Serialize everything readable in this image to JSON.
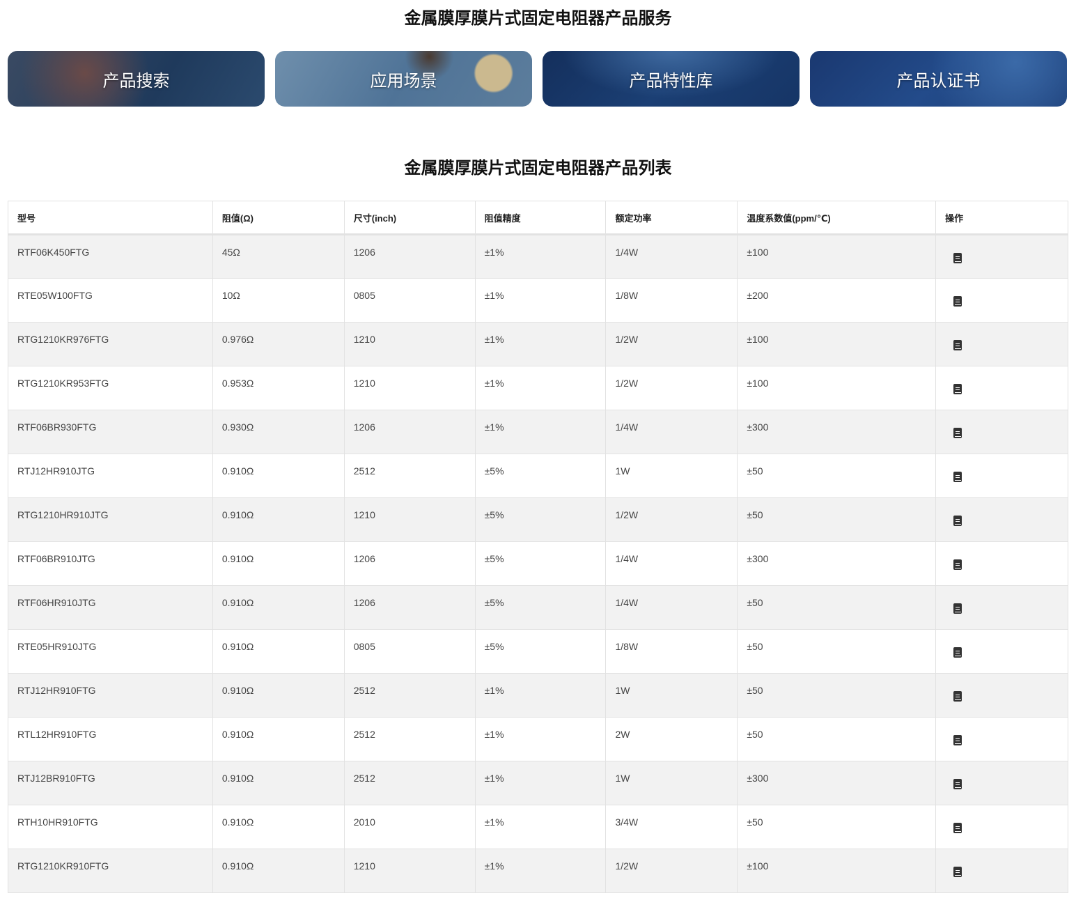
{
  "services": {
    "title": "金属膜厚膜片式固定电阻器产品服务",
    "cards": [
      "产品搜索",
      "应用场景",
      "产品特性库",
      "产品认证书"
    ]
  },
  "list": {
    "title": "金属膜厚膜片式固定电阻器产品列表",
    "headers": [
      "型号",
      "阻值(Ω)",
      "尺寸(inch)",
      "阻值精度",
      "额定功率",
      "温度系数值(ppm/℃)",
      "操作"
    ],
    "action_icon": "book-icon",
    "rows": [
      [
        "RTF06K450FTG",
        "45Ω",
        "1206",
        "±1%",
        "1/4W",
        "±100"
      ],
      [
        "RTE05W100FTG",
        "10Ω",
        "0805",
        "±1%",
        "1/8W",
        "±200"
      ],
      [
        "RTG1210KR976FTG",
        "0.976Ω",
        "1210",
        "±1%",
        "1/2W",
        "±100"
      ],
      [
        "RTG1210KR953FTG",
        "0.953Ω",
        "1210",
        "±1%",
        "1/2W",
        "±100"
      ],
      [
        "RTF06BR930FTG",
        "0.930Ω",
        "1206",
        "±1%",
        "1/4W",
        "±300"
      ],
      [
        "RTJ12HR910JTG",
        "0.910Ω",
        "2512",
        "±5%",
        "1W",
        "±50"
      ],
      [
        "RTG1210HR910JTG",
        "0.910Ω",
        "1210",
        "±5%",
        "1/2W",
        "±50"
      ],
      [
        "RTF06BR910JTG",
        "0.910Ω",
        "1206",
        "±5%",
        "1/4W",
        "±300"
      ],
      [
        "RTF06HR910JTG",
        "0.910Ω",
        "1206",
        "±5%",
        "1/4W",
        "±50"
      ],
      [
        "RTE05HR910JTG",
        "0.910Ω",
        "0805",
        "±5%",
        "1/8W",
        "±50"
      ],
      [
        "RTJ12HR910FTG",
        "0.910Ω",
        "2512",
        "±1%",
        "1W",
        "±50"
      ],
      [
        "RTL12HR910FTG",
        "0.910Ω",
        "2512",
        "±1%",
        "2W",
        "±50"
      ],
      [
        "RTJ12BR910FTG",
        "0.910Ω",
        "2512",
        "±1%",
        "1W",
        "±300"
      ],
      [
        "RTH10HR910FTG",
        "0.910Ω",
        "2010",
        "±1%",
        "3/4W",
        "±50"
      ],
      [
        "RTG1210KR910FTG",
        "0.910Ω",
        "1210",
        "±1%",
        "1/2W",
        "±100"
      ]
    ]
  }
}
